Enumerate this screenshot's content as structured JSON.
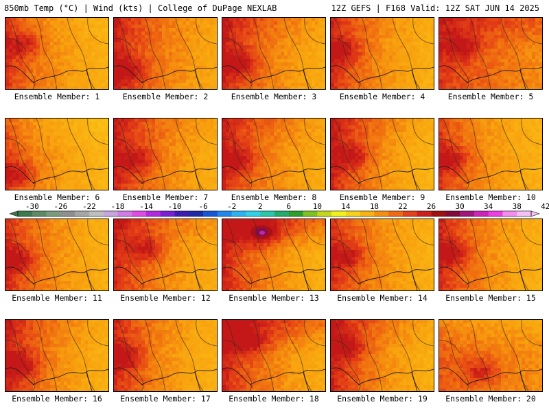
{
  "header": {
    "left": "850mb Temp (°C) | Wind (kts) | College of DuPage NEXLAB",
    "right": "12Z GEFS | F168 Valid: 12Z SAT JUN 14 2025"
  },
  "members": [
    {
      "label": "Ensemble Member: 1",
      "heat": {
        "w": 0.85,
        "n": 0.25,
        "e": 0.15,
        "spot": [
          0.15,
          0.35
        ]
      }
    },
    {
      "label": "Ensemble Member: 2",
      "heat": {
        "w": 0.95,
        "n": 0.35,
        "e": 0.25,
        "spot": [
          0.1,
          0.7
        ]
      }
    },
    {
      "label": "Ensemble Member: 3",
      "heat": {
        "w": 0.95,
        "n": 0.45,
        "e": 0.2,
        "spot": [
          0.15,
          0.6
        ]
      }
    },
    {
      "label": "Ensemble Member: 4",
      "heat": {
        "w": 0.9,
        "n": 0.35,
        "e": 0.15,
        "spot": [
          0.1,
          0.45
        ]
      }
    },
    {
      "label": "Ensemble Member: 5",
      "heat": {
        "w": 0.85,
        "n": 0.55,
        "e": 0.45,
        "spot": [
          0.2,
          0.4
        ]
      }
    },
    {
      "label": "Ensemble Member: 6",
      "heat": {
        "w": 0.8,
        "n": 0.15,
        "e": 0.1,
        "spot": [
          0.1,
          0.75
        ]
      }
    },
    {
      "label": "Ensemble Member: 7",
      "heat": {
        "w": 0.95,
        "n": 0.4,
        "e": 0.2,
        "spot": [
          0.2,
          0.55
        ]
      }
    },
    {
      "label": "Ensemble Member: 8",
      "heat": {
        "w": 0.9,
        "n": 0.45,
        "e": 0.2,
        "spot": [
          0.15,
          0.55
        ]
      }
    },
    {
      "label": "Ensemble Member: 9",
      "heat": {
        "w": 0.95,
        "n": 0.45,
        "e": 0.1,
        "spot": [
          0.2,
          0.5
        ]
      }
    },
    {
      "label": "Ensemble Member: 10",
      "heat": {
        "w": 0.85,
        "n": 0.25,
        "e": 0.15,
        "spot": [
          0.1,
          0.55
        ]
      }
    },
    {
      "label": "Ensemble Member: 11",
      "heat": {
        "w": 0.9,
        "n": 0.3,
        "e": 0.15,
        "spot": [
          0.1,
          0.55
        ]
      }
    },
    {
      "label": "Ensemble Member: 12",
      "heat": {
        "w": 0.9,
        "n": 0.5,
        "e": 0.2,
        "spot": [
          0.3,
          0.4
        ]
      }
    },
    {
      "label": "Ensemble Member: 13",
      "heat": {
        "w": 0.95,
        "n": 0.85,
        "e": 0.15,
        "spot": [
          0.38,
          0.18
        ],
        "hot": true
      }
    },
    {
      "label": "Ensemble Member: 14",
      "heat": {
        "w": 0.9,
        "n": 0.3,
        "e": 0.15,
        "spot": [
          0.15,
          0.5
        ]
      }
    },
    {
      "label": "Ensemble Member: 15",
      "heat": {
        "w": 0.9,
        "n": 0.35,
        "e": 0.15,
        "spot": [
          0.1,
          0.45
        ]
      }
    },
    {
      "label": "Ensemble Member: 16",
      "heat": {
        "w": 0.95,
        "n": 0.4,
        "e": 0.15,
        "spot": [
          0.15,
          0.6
        ]
      }
    },
    {
      "label": "Ensemble Member: 17",
      "heat": {
        "w": 0.9,
        "n": 0.35,
        "e": 0.15,
        "spot": [
          0.1,
          0.5
        ]
      }
    },
    {
      "label": "Ensemble Member: 18",
      "heat": {
        "w": 0.95,
        "n": 0.75,
        "e": 0.2,
        "spot": [
          0.25,
          0.3
        ]
      }
    },
    {
      "label": "Ensemble Member: 19",
      "heat": {
        "w": 0.95,
        "n": 0.45,
        "e": 0.15,
        "spot": [
          0.15,
          0.35
        ]
      }
    },
    {
      "label": "Ensemble Member: 20",
      "heat": {
        "w": 0.7,
        "n": 0.05,
        "e": 0.45,
        "spot": [
          0.4,
          0.7
        ]
      }
    }
  ],
  "colorbar": {
    "unit": "°C",
    "labels": [
      "-30",
      "-26",
      "-22",
      "-18",
      "-14",
      "-10",
      "-6",
      "-2",
      "2",
      "6",
      "10",
      "14",
      "18",
      "22",
      "26",
      "30",
      "34",
      "38",
      "42"
    ],
    "colors": [
      "#3c7a4e",
      "#5e8a66",
      "#7c9a7c",
      "#8f8f8f",
      "#a6a6a6",
      "#bfbfbf",
      "#c7a6e0",
      "#d27ae6",
      "#e04ae6",
      "#b02ae0",
      "#7a1fd6",
      "#3e1bb0",
      "#1d2aa8",
      "#1456d6",
      "#1e88ee",
      "#2bb3f0",
      "#2ed1e8",
      "#2ac7a8",
      "#22ad6a",
      "#2aa02a",
      "#7dc21e",
      "#c3d81a",
      "#f2f21a",
      "#f7d21a",
      "#f9b20e",
      "#f58f0c",
      "#ef6a12",
      "#e4421a",
      "#cc1e1e",
      "#a01010",
      "#820a3a",
      "#a0167a",
      "#cc24b8",
      "#ee3ee2",
      "#f58cf0",
      "#f7c0f5"
    ]
  }
}
